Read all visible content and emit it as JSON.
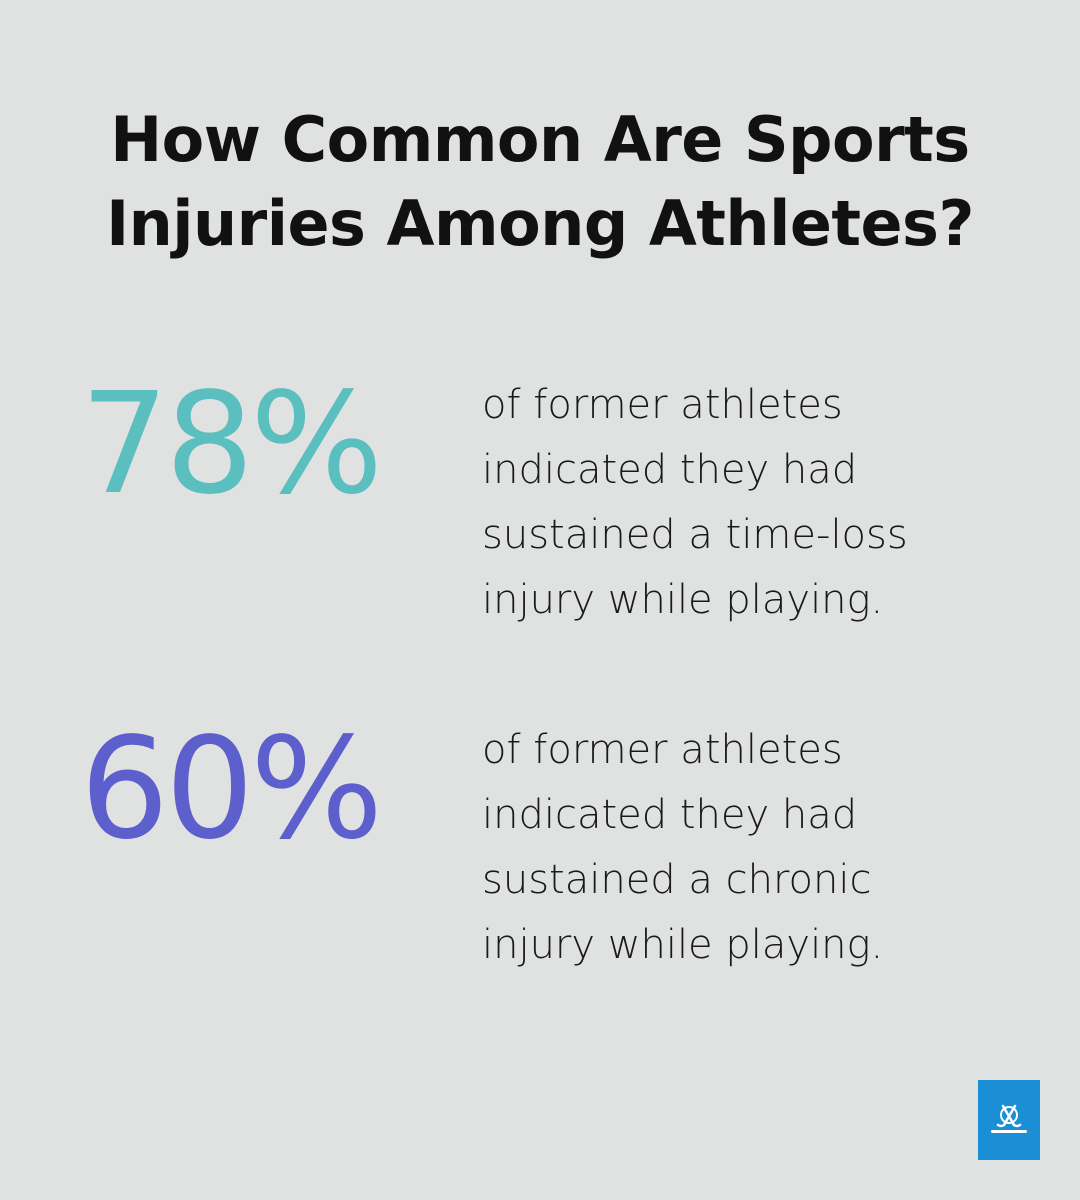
{
  "title": {
    "line1": "How Common Are Sports",
    "line2": "Injuries Among Athletes?"
  },
  "stats": [
    {
      "value": "78%",
      "color": "#5bbfbf",
      "text_lines": [
        "of former athletes",
        "indicated they had",
        "sustained a time-loss",
        "injury while playing."
      ]
    },
    {
      "value": "60%",
      "color": "#5c5fcc",
      "text_lines": [
        "of former athletes",
        "indicated they had",
        "sustained a chronic",
        "injury while playing."
      ]
    }
  ],
  "logo": {
    "icon": "hockey-sticks-icon",
    "background": "#1a8fd6"
  },
  "background_color": "#e0e2e1"
}
